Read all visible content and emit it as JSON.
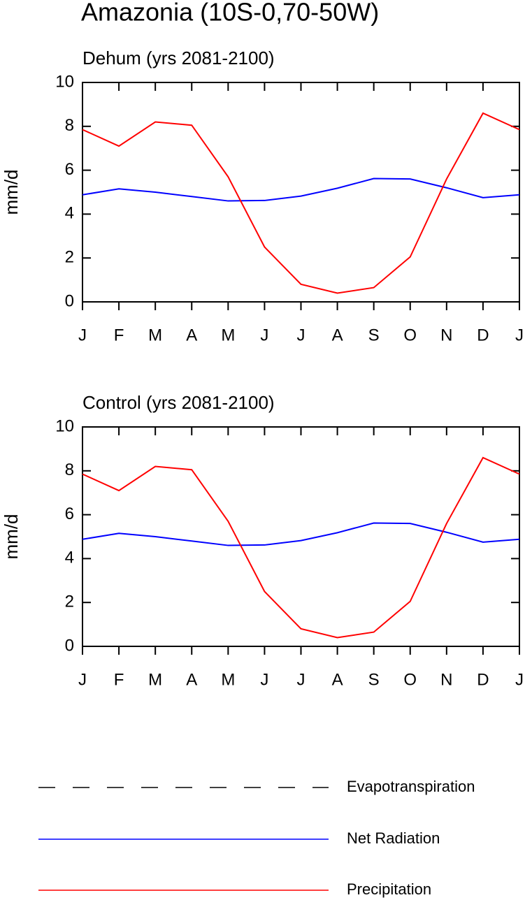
{
  "title": "Amazonia (10S-0,70-50W)",
  "chart_data": [
    {
      "type": "line",
      "title": "Dehum (yrs 2081-2100)",
      "ylabel": "mm/d",
      "categories": [
        "J",
        "F",
        "M",
        "A",
        "M",
        "J",
        "J",
        "A",
        "S",
        "O",
        "N",
        "D",
        "J"
      ],
      "ylim": [
        0,
        10
      ],
      "yticks": [
        0,
        2,
        4,
        6,
        8,
        10
      ],
      "series": [
        {
          "name": "Evapotranspiration",
          "color": "#000000",
          "dashed": true,
          "values": [
            null,
            null,
            null,
            null,
            null,
            null,
            null,
            null,
            null,
            null,
            null,
            null,
            null
          ]
        },
        {
          "name": "Net Radiation",
          "color": "#0000ff",
          "values": [
            4.88,
            5.15,
            5.0,
            4.8,
            4.6,
            4.62,
            4.82,
            5.18,
            5.62,
            5.6,
            5.2,
            4.75,
            4.88
          ]
        },
        {
          "name": "Precipitation",
          "color": "#ff0000",
          "values": [
            7.85,
            7.1,
            8.2,
            8.05,
            5.7,
            2.5,
            0.8,
            0.4,
            0.65,
            2.05,
            5.6,
            8.6,
            7.85
          ]
        }
      ]
    },
    {
      "type": "line",
      "title": "Control (yrs 2081-2100)",
      "ylabel": "mm/d",
      "categories": [
        "J",
        "F",
        "M",
        "A",
        "M",
        "J",
        "J",
        "A",
        "S",
        "O",
        "N",
        "D",
        "J"
      ],
      "ylim": [
        0,
        10
      ],
      "yticks": [
        0,
        2,
        4,
        6,
        8,
        10
      ],
      "series": [
        {
          "name": "Evapotranspiration",
          "color": "#000000",
          "dashed": true,
          "values": [
            null,
            null,
            null,
            null,
            null,
            null,
            null,
            null,
            null,
            null,
            null,
            null,
            null
          ]
        },
        {
          "name": "Net Radiation",
          "color": "#0000ff",
          "values": [
            4.88,
            5.15,
            5.0,
            4.8,
            4.6,
            4.62,
            4.82,
            5.18,
            5.62,
            5.6,
            5.2,
            4.75,
            4.88
          ]
        },
        {
          "name": "Precipitation",
          "color": "#ff0000",
          "values": [
            7.85,
            7.1,
            8.2,
            8.05,
            5.7,
            2.5,
            0.8,
            0.4,
            0.65,
            2.05,
            5.6,
            8.6,
            7.85
          ]
        }
      ]
    }
  ]
}
